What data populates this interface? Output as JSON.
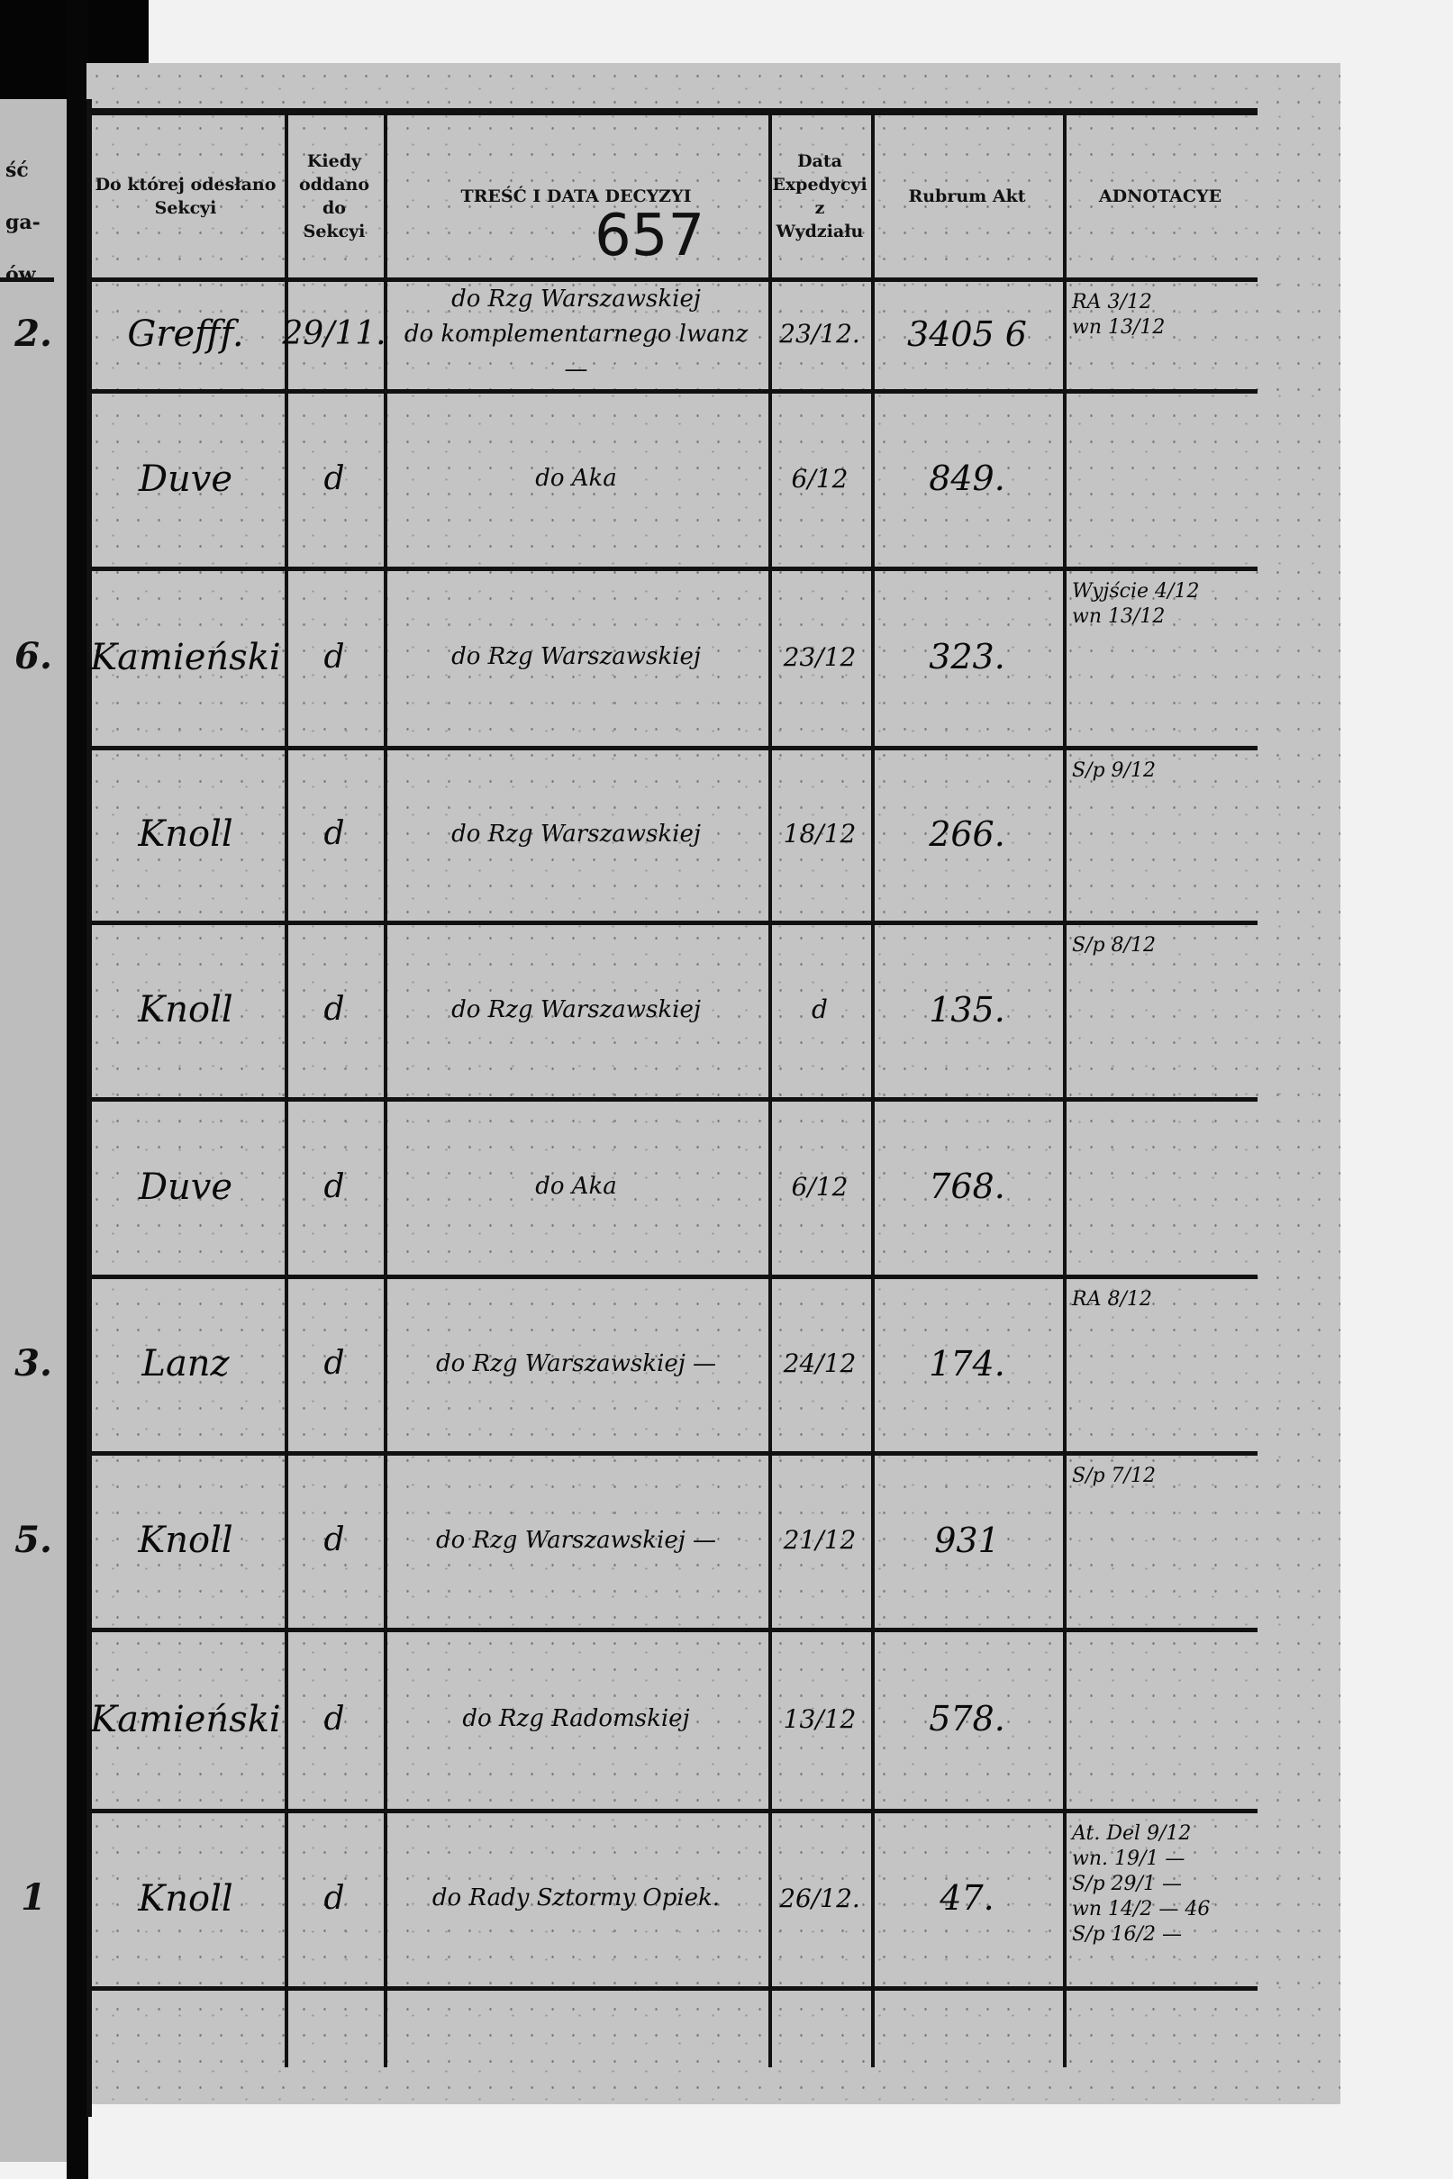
{
  "page_number": "657",
  "left_page_fragment": {
    "header_lines": [
      "ść",
      "ga-",
      "ów"
    ],
    "row_marks": [
      "2.",
      "",
      "6.",
      "",
      "",
      "",
      "3.",
      "5.",
      "",
      "1"
    ]
  },
  "columns": [
    {
      "header": "Do której odesłano Sekcyi"
    },
    {
      "header": "Kiedy oddano do Sekcyi"
    },
    {
      "header": "TREŚĆ I DATA DECYZYI"
    },
    {
      "header": "Data Expedycyi z Wydziału"
    },
    {
      "header": "Rubrum Akt"
    },
    {
      "header": "ADNOTACYE"
    }
  ],
  "rows": [
    {
      "section": "Grefff.",
      "handed_over": "29/11.",
      "content": "do Rzg Warszawskiej\ndo komplementarnego lwanz —",
      "expedition_date": "23/12.",
      "rubrum": "3405 6",
      "annotation": "RA 3/12\nwn 13/12"
    },
    {
      "section": "Duve",
      "handed_over": "d",
      "content": "do Aka",
      "expedition_date": "6/12",
      "rubrum": "849.",
      "annotation": ""
    },
    {
      "section": "Kamieński",
      "handed_over": "d",
      "content": "do Rzg Warszawskiej",
      "expedition_date": "23/12",
      "rubrum": "323.",
      "annotation": "Wyjście 4/12\nwn 13/12"
    },
    {
      "section": "Knoll",
      "handed_over": "d",
      "content": "do Rzg Warszawskiej",
      "expedition_date": "18/12",
      "rubrum": "266.",
      "annotation": "S/p 9/12"
    },
    {
      "section": "Knoll",
      "handed_over": "d",
      "content": "do Rzg Warszawskiej",
      "expedition_date": "d",
      "rubrum": "135.",
      "annotation": "S/p 8/12"
    },
    {
      "section": "Duve",
      "handed_over": "d",
      "content": "do Aka",
      "expedition_date": "6/12",
      "rubrum": "768.",
      "annotation": ""
    },
    {
      "section": "Lanz",
      "handed_over": "d",
      "content": "do Rzg Warszawskiej —",
      "expedition_date": "24/12",
      "rubrum": "174.",
      "annotation": "RA 8/12"
    },
    {
      "section": "Knoll",
      "handed_over": "d",
      "content": "do Rzg Warszawskiej —",
      "expedition_date": "21/12",
      "rubrum": "931",
      "annotation": "S/p 7/12"
    },
    {
      "section": "Kamieński",
      "handed_over": "d",
      "content": "do Rzg Radomskiej",
      "expedition_date": "13/12",
      "rubrum": "578.",
      "annotation": ""
    },
    {
      "section": "Knoll",
      "handed_over": "d",
      "content": "do Rady Sztormy Opiek.",
      "expedition_date": "26/12.",
      "rubrum": "47.",
      "annotation": "At. Del 9/12\nwn. 19/1 —\nS/p 29/1 —\nwn 14/2 — 46\nS/p 16/2 —"
    }
  ]
}
